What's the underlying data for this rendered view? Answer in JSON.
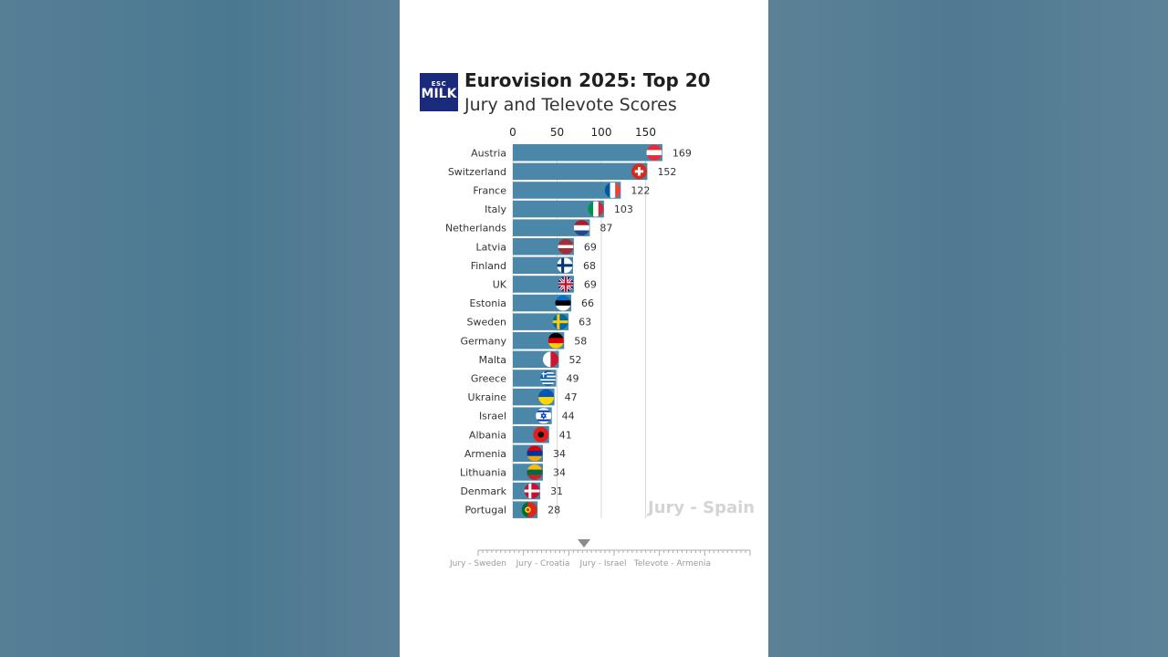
{
  "header": {
    "logo_small": "ESC",
    "logo_main": "MILK",
    "title": "Eurovision 2025: Top 20",
    "subtitle": "Jury and Televote Scores"
  },
  "frame_label": "Jury - Spain",
  "chart_data": {
    "type": "bar",
    "orientation": "horizontal",
    "title": "Eurovision 2025: Top 20",
    "subtitle": "Jury and Televote Scores",
    "xlim": [
      0,
      175
    ],
    "xticks": [
      0,
      50,
      100,
      150
    ],
    "grid": true,
    "categories": [
      "Austria",
      "Switzerland",
      "France",
      "Italy",
      "Netherlands",
      "Latvia",
      "Finland",
      "UK",
      "Estonia",
      "Sweden",
      "Germany",
      "Malta",
      "Greece",
      "Ukraine",
      "Israel",
      "Albania",
      "Armenia",
      "Lithuania",
      "Denmark",
      "Portugal"
    ],
    "values": [
      169,
      152,
      122,
      103,
      87,
      69,
      68,
      69,
      66,
      63,
      58,
      52,
      49,
      47,
      44,
      41,
      34,
      34,
      31,
      28
    ],
    "bar_color": "#4b87a8"
  },
  "timeline": {
    "labels": [
      "Jury - Sweden",
      "Jury - Croatia",
      "Jury - Israel",
      "Televote - Armenia"
    ]
  }
}
